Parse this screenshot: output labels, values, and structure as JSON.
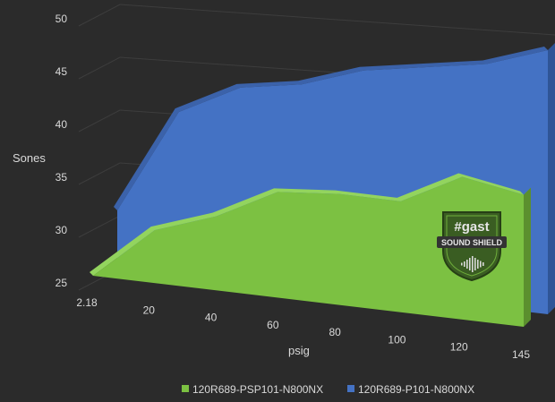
{
  "chart_data": {
    "type": "area",
    "title": "",
    "xlabel": "psig",
    "ylabel": "Sones",
    "x_ticks": [
      "2.18",
      "20",
      "40",
      "60",
      "80",
      "100",
      "120",
      "145"
    ],
    "y_ticks": [
      "25",
      "30",
      "35",
      "40",
      "45",
      "50"
    ],
    "ylim": [
      25,
      50
    ],
    "grid": true,
    "legend_position": "bottom",
    "series": [
      {
        "name": "120R689-PSP101-N800NX",
        "color": "#7cc142",
        "values": [
          25,
          30,
          32,
          35,
          35.5,
          35.5,
          38.5,
          37.5
        ]
      },
      {
        "name": "120R689-P101-N800NX",
        "color": "#4472c4",
        "values": [
          30,
          40,
          43,
          44,
          46,
          47,
          48,
          50
        ]
      }
    ]
  },
  "logo": {
    "brand": "#gast",
    "product": "SOUND SHIELD"
  }
}
